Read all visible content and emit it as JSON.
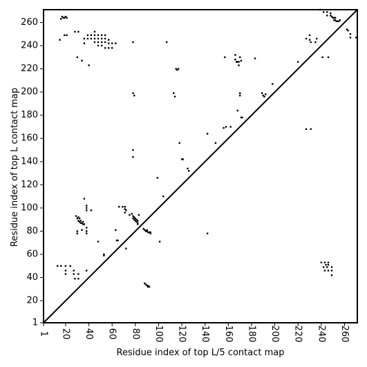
{
  "chart_data": {
    "type": "scatter",
    "title": "",
    "xlabel": "Residue index of top L/5 contact map",
    "ylabel": "Residue index of top L contact map",
    "xlim": [
      1,
      271
    ],
    "ylim": [
      1,
      271
    ],
    "xticks": [
      1,
      20,
      40,
      60,
      80,
      100,
      120,
      140,
      160,
      180,
      200,
      220,
      240,
      260
    ],
    "yticks": [
      1,
      20,
      40,
      60,
      80,
      100,
      120,
      140,
      160,
      180,
      200,
      220,
      240,
      260
    ],
    "grid": false,
    "diagonal": true,
    "marker_color": "#000000",
    "series": [
      {
        "values": [
          [
            16,
            263
          ],
          [
            17,
            265
          ],
          [
            18,
            264
          ],
          [
            19,
            264
          ],
          [
            20,
            265
          ],
          [
            21,
            264
          ],
          [
            15,
            245
          ],
          [
            19,
            249
          ],
          [
            21,
            249
          ],
          [
            28,
            252
          ],
          [
            31,
            252
          ],
          [
            36,
            242
          ],
          [
            36,
            246
          ],
          [
            39,
            246
          ],
          [
            39,
            249
          ],
          [
            42,
            249
          ],
          [
            42,
            246
          ],
          [
            45,
            252
          ],
          [
            45,
            249
          ],
          [
            45,
            246
          ],
          [
            45,
            243
          ],
          [
            48,
            249
          ],
          [
            48,
            246
          ],
          [
            48,
            243
          ],
          [
            48,
            240
          ],
          [
            51,
            249
          ],
          [
            51,
            246
          ],
          [
            51,
            243
          ],
          [
            51,
            240
          ],
          [
            54,
            249
          ],
          [
            54,
            246
          ],
          [
            54,
            243
          ],
          [
            54,
            238
          ],
          [
            57,
            245
          ],
          [
            57,
            242
          ],
          [
            57,
            238
          ],
          [
            60,
            242
          ],
          [
            60,
            238
          ],
          [
            63,
            242
          ],
          [
            78,
            243
          ],
          [
            107,
            243
          ],
          [
            30,
            230
          ],
          [
            34,
            227
          ],
          [
            40,
            223
          ],
          [
            115,
            220
          ],
          [
            116,
            219
          ],
          [
            117,
            220
          ],
          [
            113,
            199
          ],
          [
            114,
            196
          ],
          [
            118,
            156
          ],
          [
            120,
            142
          ],
          [
            121,
            142
          ],
          [
            125,
            134
          ],
          [
            126,
            132
          ],
          [
            78,
            199
          ],
          [
            79,
            197
          ],
          [
            78,
            150
          ],
          [
            78,
            144
          ],
          [
            99,
            126
          ],
          [
            104,
            110
          ],
          [
            142,
            164
          ],
          [
            149,
            156
          ],
          [
            156,
            169
          ],
          [
            158,
            170
          ],
          [
            162,
            170
          ],
          [
            157,
            230
          ],
          [
            166,
            232
          ],
          [
            166,
            228
          ],
          [
            167,
            226
          ],
          [
            168,
            226
          ],
          [
            169,
            226
          ],
          [
            169,
            223
          ],
          [
            170,
            230
          ],
          [
            171,
            227
          ],
          [
            170,
            199
          ],
          [
            170,
            197
          ],
          [
            171,
            178
          ],
          [
            172,
            178
          ],
          [
            168,
            184
          ],
          [
            183,
            229
          ],
          [
            189,
            199
          ],
          [
            190,
            197
          ],
          [
            191,
            196
          ],
          [
            192,
            198
          ],
          [
            198,
            207
          ],
          [
            220,
            226
          ],
          [
            227,
            246
          ],
          [
            230,
            249
          ],
          [
            230,
            245
          ],
          [
            231,
            243
          ],
          [
            235,
            243
          ],
          [
            236,
            246
          ],
          [
            239,
            271
          ],
          [
            242,
            269
          ],
          [
            245,
            269
          ],
          [
            248,
            268
          ],
          [
            245,
            266
          ],
          [
            248,
            266
          ],
          [
            249,
            265
          ],
          [
            250,
            264
          ],
          [
            251,
            264
          ],
          [
            252,
            264
          ],
          [
            251,
            262
          ],
          [
            252,
            262
          ],
          [
            253,
            261
          ],
          [
            254,
            261
          ],
          [
            255,
            261
          ],
          [
            256,
            262
          ],
          [
            241,
            230
          ],
          [
            246,
            230
          ],
          [
            262,
            254
          ],
          [
            263,
            253
          ],
          [
            265,
            250
          ],
          [
            265,
            247
          ],
          [
            270,
            247
          ],
          [
            227,
            168
          ],
          [
            231,
            168
          ],
          [
            240,
            53
          ],
          [
            243,
            53
          ],
          [
            246,
            53
          ],
          [
            242,
            49
          ],
          [
            245,
            49
          ],
          [
            249,
            49
          ],
          [
            243,
            46
          ],
          [
            246,
            46
          ],
          [
            249,
            46
          ],
          [
            249,
            42
          ],
          [
            246,
            51
          ],
          [
            244,
            51
          ],
          [
            13,
            50
          ],
          [
            16,
            50
          ],
          [
            20,
            50
          ],
          [
            20,
            46
          ],
          [
            20,
            43
          ],
          [
            24,
            50
          ],
          [
            27,
            46
          ],
          [
            27,
            43
          ],
          [
            31,
            43
          ],
          [
            28,
            39
          ],
          [
            31,
            39
          ],
          [
            38,
            46
          ],
          [
            29,
            93
          ],
          [
            30,
            91
          ],
          [
            31,
            92
          ],
          [
            31,
            89
          ],
          [
            32,
            91
          ],
          [
            32,
            88
          ],
          [
            33,
            89
          ],
          [
            33,
            87
          ],
          [
            34,
            87
          ],
          [
            35,
            88
          ],
          [
            35,
            86
          ],
          [
            36,
            86
          ],
          [
            30,
            80
          ],
          [
            30,
            78
          ],
          [
            34,
            81
          ],
          [
            38,
            83
          ],
          [
            38,
            80
          ],
          [
            38,
            78
          ],
          [
            36,
            108
          ],
          [
            38,
            102
          ],
          [
            38,
            100
          ],
          [
            38,
            98
          ],
          [
            42,
            98
          ],
          [
            48,
            71
          ],
          [
            53,
            60
          ],
          [
            53,
            59
          ],
          [
            63,
            81
          ],
          [
            64,
            72
          ],
          [
            65,
            72
          ],
          [
            66,
            101
          ],
          [
            69,
            101
          ],
          [
            71,
            101
          ],
          [
            71,
            99
          ],
          [
            72,
            98
          ],
          [
            71,
            96
          ],
          [
            75,
            94
          ],
          [
            77,
            95
          ],
          [
            78,
            93
          ],
          [
            78,
            91
          ],
          [
            79,
            92
          ],
          [
            79,
            90
          ],
          [
            80,
            89
          ],
          [
            80,
            91
          ],
          [
            81,
            90
          ],
          [
            81,
            88
          ],
          [
            82,
            89
          ],
          [
            82,
            87
          ],
          [
            82,
            86
          ],
          [
            72,
            65
          ],
          [
            83,
            94
          ],
          [
            87,
            82
          ],
          [
            88,
            81
          ],
          [
            89,
            80
          ],
          [
            90,
            81
          ],
          [
            90,
            80
          ],
          [
            91,
            79
          ],
          [
            92,
            79
          ],
          [
            93,
            79
          ],
          [
            93,
            78
          ],
          [
            88,
            35
          ],
          [
            89,
            34
          ],
          [
            90,
            33
          ],
          [
            91,
            33
          ],
          [
            91,
            32
          ],
          [
            92,
            32
          ],
          [
            101,
            71
          ],
          [
            142,
            78
          ]
        ]
      }
    ]
  }
}
